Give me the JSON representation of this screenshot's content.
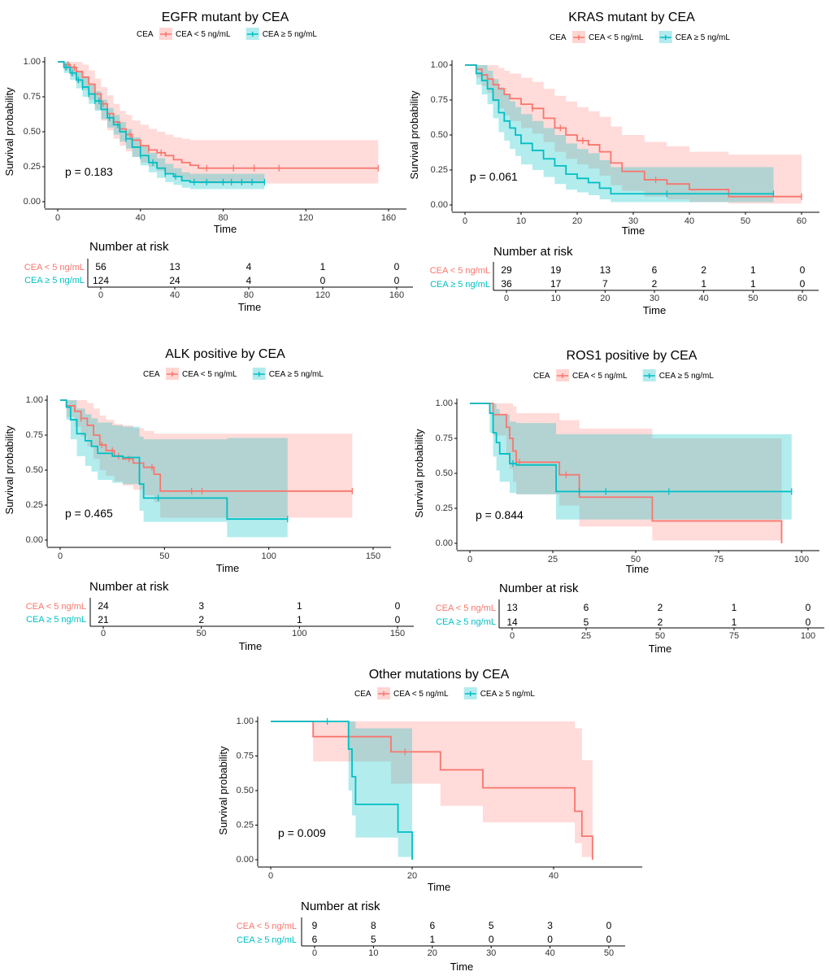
{
  "legend": {
    "label": "CEA",
    "low": "CEA < 5 ng/mL",
    "high": "CEA ≥ 5 ng/mL"
  },
  "colors": {
    "low": "#f8766d",
    "high": "#00bfc4",
    "low_fill": "#ffd5d2",
    "high_fill": "#b2ebee",
    "overlap_fill": "#c7d7d8"
  },
  "risk_title": "Number at risk",
  "chart_data": [
    {
      "type": "line",
      "title": "EGFR mutant by CEA",
      "xlabel": "Time",
      "ylabel": "Survival probability",
      "xlim": [
        0,
        160
      ],
      "ylim": [
        0,
        1
      ],
      "xticks": [
        0,
        40,
        80,
        120,
        160
      ],
      "yticks": [
        0,
        0.25,
        0.5,
        0.75,
        1
      ],
      "pvalue": "p = 0.183",
      "risk_times": [
        0,
        40,
        80,
        120,
        160
      ],
      "series": [
        {
          "name": "CEA < 5 ng/mL",
          "x": [
            0,
            3,
            6,
            9,
            12,
            15,
            18,
            21,
            24,
            27,
            30,
            33,
            36,
            40,
            44,
            48,
            52,
            56,
            60,
            64,
            68,
            155
          ],
          "y": [
            1,
            0.98,
            0.96,
            0.93,
            0.89,
            0.84,
            0.77,
            0.7,
            0.63,
            0.57,
            0.52,
            0.48,
            0.44,
            0.4,
            0.37,
            0.35,
            0.33,
            0.3,
            0.28,
            0.26,
            0.24,
            0.24
          ],
          "upper": [
            1,
            1,
            1,
            1,
            0.98,
            0.94,
            0.88,
            0.82,
            0.76,
            0.7,
            0.65,
            0.62,
            0.58,
            0.55,
            0.52,
            0.5,
            0.48,
            0.46,
            0.45,
            0.44,
            0.44,
            0.44
          ],
          "lower": [
            1,
            0.94,
            0.9,
            0.85,
            0.8,
            0.73,
            0.66,
            0.58,
            0.51,
            0.45,
            0.4,
            0.36,
            0.32,
            0.28,
            0.25,
            0.22,
            0.2,
            0.18,
            0.16,
            0.14,
            0.13,
            0.13
          ],
          "censor": [
            5,
            8,
            22,
            35,
            44,
            50,
            72,
            85,
            95,
            107,
            155
          ]
        },
        {
          "name": "CEA ≥ 5 ng/mL",
          "x": [
            0,
            3,
            6,
            9,
            12,
            15,
            18,
            21,
            24,
            27,
            30,
            33,
            36,
            40,
            44,
            48,
            52,
            56,
            60,
            64,
            100
          ],
          "y": [
            1,
            0.96,
            0.92,
            0.87,
            0.82,
            0.77,
            0.72,
            0.66,
            0.6,
            0.55,
            0.5,
            0.45,
            0.39,
            0.33,
            0.28,
            0.24,
            0.2,
            0.18,
            0.15,
            0.14,
            0.14
          ],
          "upper": [
            1,
            1,
            0.97,
            0.93,
            0.89,
            0.84,
            0.79,
            0.73,
            0.67,
            0.62,
            0.57,
            0.52,
            0.46,
            0.4,
            0.35,
            0.31,
            0.27,
            0.24,
            0.21,
            0.2,
            0.2
          ],
          "lower": [
            1,
            0.92,
            0.87,
            0.81,
            0.75,
            0.7,
            0.65,
            0.59,
            0.53,
            0.48,
            0.43,
            0.38,
            0.32,
            0.26,
            0.21,
            0.17,
            0.14,
            0.12,
            0.1,
            0.09,
            0.09
          ],
          "censor": [
            4,
            7,
            10,
            12,
            15,
            18,
            20,
            25,
            29,
            33,
            40,
            46,
            52,
            57,
            66,
            72,
            80,
            84,
            89,
            94,
            100
          ]
        }
      ],
      "risk": [
        {
          "name": "CEA < 5 ng/mL",
          "values": [
            56,
            13,
            4,
            1,
            0
          ]
        },
        {
          "name": "CEA ≥ 5 ng/mL",
          "values": [
            124,
            24,
            4,
            0,
            0
          ]
        }
      ]
    },
    {
      "type": "line",
      "title": "KRAS mutant by CEA",
      "xlabel": "Time",
      "ylabel": "Survival probability",
      "xlim": [
        0,
        60
      ],
      "ylim": [
        0,
        1
      ],
      "xticks": [
        0,
        10,
        20,
        30,
        40,
        50,
        60
      ],
      "yticks": [
        0,
        0.25,
        0.5,
        0.75,
        1
      ],
      "pvalue": "p = 0.061",
      "risk_times": [
        0,
        10,
        20,
        30,
        40,
        50,
        60
      ],
      "series": [
        {
          "name": "CEA < 5 ng/mL",
          "x": [
            0,
            2,
            3,
            4,
            5,
            6,
            7,
            8,
            10,
            12,
            14,
            16,
            18,
            20,
            22,
            24,
            26,
            28,
            32,
            36,
            40,
            47,
            60
          ],
          "y": [
            1,
            0.97,
            0.93,
            0.9,
            0.86,
            0.83,
            0.79,
            0.76,
            0.72,
            0.69,
            0.62,
            0.55,
            0.5,
            0.46,
            0.43,
            0.38,
            0.3,
            0.24,
            0.18,
            0.15,
            0.11,
            0.06,
            0.06
          ],
          "upper": [
            1,
            1,
            1,
            1,
            1,
            0.98,
            0.96,
            0.94,
            0.91,
            0.88,
            0.83,
            0.78,
            0.74,
            0.7,
            0.67,
            0.63,
            0.56,
            0.5,
            0.45,
            0.42,
            0.38,
            0.36,
            0.36
          ],
          "lower": [
            1,
            0.91,
            0.85,
            0.8,
            0.74,
            0.69,
            0.64,
            0.6,
            0.55,
            0.51,
            0.45,
            0.38,
            0.33,
            0.29,
            0.26,
            0.21,
            0.14,
            0.1,
            0.06,
            0.04,
            0.02,
            0.01,
            0.01
          ],
          "censor": [
            12,
            17,
            21,
            34,
            60
          ]
        },
        {
          "name": "CEA ≥ 5 ng/mL",
          "x": [
            0,
            2,
            3,
            4,
            5,
            6,
            7,
            8,
            9,
            10,
            12,
            14,
            16,
            18,
            20,
            22,
            24,
            26,
            55
          ],
          "y": [
            1,
            0.94,
            0.89,
            0.83,
            0.75,
            0.66,
            0.6,
            0.55,
            0.5,
            0.44,
            0.39,
            0.33,
            0.28,
            0.22,
            0.19,
            0.16,
            0.12,
            0.08,
            0.08
          ],
          "upper": [
            1,
            1,
            1,
            0.96,
            0.9,
            0.84,
            0.79,
            0.74,
            0.7,
            0.65,
            0.6,
            0.55,
            0.5,
            0.44,
            0.4,
            0.37,
            0.32,
            0.27,
            0.27
          ],
          "lower": [
            1,
            0.86,
            0.79,
            0.72,
            0.62,
            0.52,
            0.46,
            0.4,
            0.35,
            0.29,
            0.25,
            0.2,
            0.15,
            0.11,
            0.09,
            0.07,
            0.04,
            0.02,
            0.02
          ],
          "censor": [
            36,
            55
          ]
        }
      ],
      "risk": [
        {
          "name": "CEA < 5 ng/mL",
          "values": [
            29,
            19,
            13,
            6,
            2,
            1,
            0
          ]
        },
        {
          "name": "CEA ≥ 5 ng/mL",
          "values": [
            36,
            17,
            7,
            2,
            1,
            1,
            0
          ]
        }
      ]
    },
    {
      "type": "line",
      "title": "ALK positive by CEA",
      "xlabel": "Time",
      "ylabel": "Survival probability",
      "xlim": [
        0,
        150
      ],
      "ylim": [
        0,
        1
      ],
      "xticks": [
        0,
        50,
        100,
        150
      ],
      "yticks": [
        0,
        0.25,
        0.5,
        0.75,
        1
      ],
      "pvalue": "p = 0.465",
      "risk_times": [
        0,
        50,
        100,
        150
      ],
      "series": [
        {
          "name": "CEA < 5 ng/mL",
          "x": [
            0,
            3,
            7,
            10,
            13,
            16,
            19,
            22,
            26,
            30,
            35,
            40,
            45,
            48,
            140
          ],
          "y": [
            1,
            0.96,
            0.92,
            0.87,
            0.82,
            0.75,
            0.68,
            0.64,
            0.6,
            0.58,
            0.55,
            0.52,
            0.47,
            0.35,
            0.35
          ],
          "upper": [
            1,
            1,
            1,
            1,
            0.98,
            0.94,
            0.89,
            0.86,
            0.83,
            0.82,
            0.8,
            0.78,
            0.76,
            0.76,
            0.76
          ],
          "lower": [
            1,
            0.88,
            0.81,
            0.74,
            0.67,
            0.58,
            0.5,
            0.46,
            0.42,
            0.39,
            0.36,
            0.32,
            0.27,
            0.16,
            0.16
          ],
          "censor": [
            10,
            20,
            25,
            28,
            33,
            44,
            63,
            68,
            140
          ]
        },
        {
          "name": "CEA ≥ 5 ng/mL",
          "x": [
            0,
            3,
            5,
            8,
            12,
            15,
            18,
            25,
            30,
            38,
            40,
            80,
            109
          ],
          "y": [
            1,
            0.95,
            0.86,
            0.76,
            0.71,
            0.67,
            0.62,
            0.6,
            0.59,
            0.4,
            0.3,
            0.15,
            0.15
          ],
          "upper": [
            1,
            1,
            1,
            0.94,
            0.9,
            0.87,
            0.84,
            0.82,
            0.81,
            0.74,
            0.72,
            0.73,
            0.73
          ],
          "lower": [
            1,
            0.86,
            0.72,
            0.6,
            0.53,
            0.49,
            0.43,
            0.41,
            0.4,
            0.21,
            0.13,
            0.02,
            0.02
          ],
          "censor": [
            47,
            109
          ]
        }
      ],
      "risk": [
        {
          "name": "CEA < 5 ng/mL",
          "values": [
            24,
            3,
            1,
            0
          ]
        },
        {
          "name": "CEA ≥ 5 ng/mL",
          "values": [
            21,
            2,
            1,
            0
          ]
        }
      ]
    },
    {
      "type": "line",
      "title": "ROS1 positive by CEA",
      "xlabel": "Time",
      "ylabel": "Survival probability",
      "xlim": [
        0,
        100
      ],
      "ylim": [
        0,
        1
      ],
      "xticks": [
        0,
        25,
        50,
        75,
        100
      ],
      "yticks": [
        0,
        0.25,
        0.5,
        0.75,
        1
      ],
      "pvalue": "p = 0.844",
      "risk_times": [
        0,
        25,
        50,
        75,
        100
      ],
      "series": [
        {
          "name": "CEA < 5 ng/mL",
          "x": [
            0,
            7,
            11,
            12,
            13,
            14,
            27,
            33,
            55,
            94
          ],
          "y": [
            1,
            0.92,
            0.83,
            0.75,
            0.66,
            0.58,
            0.49,
            0.33,
            0.16,
            0
          ],
          "upper": [
            1,
            1,
            1,
            1,
            0.98,
            0.93,
            0.88,
            0.82,
            0.75,
            0.75
          ],
          "lower": [
            1,
            0.77,
            0.63,
            0.53,
            0.44,
            0.35,
            0.27,
            0.12,
            0.02,
            0
          ],
          "censor": [
            15,
            29
          ]
        },
        {
          "name": "CEA ≥ 5 ng/mL",
          "x": [
            0,
            6,
            7,
            8,
            9,
            12,
            14,
            26,
            97
          ],
          "y": [
            1,
            0.93,
            0.79,
            0.72,
            0.64,
            0.57,
            0.56,
            0.37,
            0.37
          ],
          "upper": [
            1,
            1,
            1,
            0.96,
            0.92,
            0.87,
            0.86,
            0.78,
            0.78
          ],
          "lower": [
            1,
            0.79,
            0.62,
            0.52,
            0.44,
            0.36,
            0.35,
            0.17,
            0.17
          ],
          "censor": [
            13,
            33,
            41,
            60,
            97
          ]
        }
      ],
      "risk": [
        {
          "name": "CEA < 5 ng/mL",
          "values": [
            13,
            6,
            2,
            1,
            0
          ]
        },
        {
          "name": "CEA ≥ 5 ng/mL",
          "values": [
            14,
            5,
            2,
            1,
            0
          ]
        }
      ]
    },
    {
      "type": "line",
      "title": "Other mutations by CEA",
      "xlabel": "Time",
      "ylabel": "Survival probability",
      "xlim": [
        0,
        50
      ],
      "ylim": [
        0,
        1
      ],
      "xticks": [
        0,
        20,
        40
      ],
      "yticks": [
        0,
        0.25,
        0.5,
        0.75,
        1
      ],
      "pvalue": "p = 0.009",
      "risk_times": [
        0,
        10,
        20,
        30,
        40,
        50
      ],
      "series": [
        {
          "name": "CEA < 5 ng/mL",
          "x": [
            0,
            6,
            17,
            24,
            30,
            43,
            44,
            45.5
          ],
          "y": [
            1,
            0.89,
            0.78,
            0.65,
            0.52,
            0.35,
            0.17,
            0
          ],
          "upper": [
            1,
            1,
            1,
            1,
            1,
            0.95,
            0.72,
            0.72
          ],
          "lower": [
            1,
            0.71,
            0.55,
            0.39,
            0.27,
            0.12,
            0.02,
            0
          ],
          "censor": [
            19
          ]
        },
        {
          "name": "CEA ≥ 5 ng/mL",
          "x": [
            0,
            11,
            11.5,
            12,
            18,
            20
          ],
          "y": [
            1,
            0.8,
            0.6,
            0.4,
            0.2,
            0
          ],
          "upper": [
            1,
            1,
            1,
            0.95,
            0.95,
            0.95
          ],
          "lower": [
            1,
            0.5,
            0.32,
            0.16,
            0.02,
            0
          ],
          "censor": [
            8
          ]
        }
      ],
      "risk": [
        {
          "name": "CEA < 5 ng/mL",
          "values": [
            9,
            8,
            6,
            5,
            3,
            0
          ]
        },
        {
          "name": "CEA ≥ 5 ng/mL",
          "values": [
            6,
            5,
            1,
            0,
            0,
            0
          ]
        }
      ]
    }
  ]
}
